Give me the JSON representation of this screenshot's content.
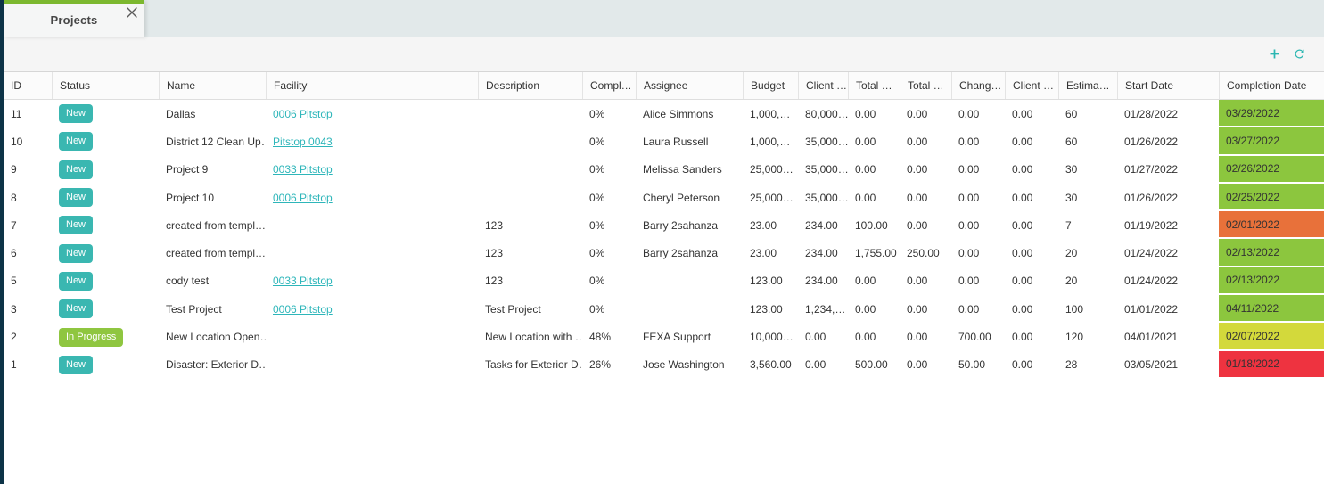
{
  "tabs": {
    "items": [
      {
        "label": "Projects",
        "active": true
      }
    ]
  },
  "toolbar": {
    "add_icon": "plus",
    "refresh_icon": "refresh",
    "accent_color": "#2bb6b1"
  },
  "table": {
    "columns": [
      "ID",
      "Status",
      "Name",
      "Facility",
      "Description",
      "Compl…",
      "Assignee",
      "Budget",
      "Client …",
      "Total …",
      "Total …",
      "Chang…",
      "Client …",
      "Estima…",
      "Start Date",
      "Completion Date"
    ],
    "status_colors": {
      "New": "#3ab7b1",
      "In Progress": "#8fc640"
    },
    "completion_colors": {
      "green": "#8cc63e",
      "orange": "#e8713a",
      "yellow": "#d3d93b",
      "red": "#ee3340"
    },
    "link_color": "#2eb6ba",
    "rows": [
      {
        "id": "11",
        "status": "New",
        "name": "Dallas",
        "facility": "0006 Pitstop",
        "description": "",
        "complete": "0%",
        "assignee": "Alice Simmons",
        "budget": "1,000,…",
        "client_budget": "80,000…",
        "total_1": "0.00",
        "total_2": "0.00",
        "change": "0.00",
        "client_2": "0.00",
        "estimated": "60",
        "start_date": "01/28/2022",
        "completion_date": "03/29/2022",
        "completion_color": "green"
      },
      {
        "id": "10",
        "status": "New",
        "name": "District 12 Clean Up…",
        "facility": "Pitstop 0043",
        "description": "",
        "complete": "0%",
        "assignee": "Laura Russell",
        "budget": "1,000,…",
        "client_budget": "35,000…",
        "total_1": "0.00",
        "total_2": "0.00",
        "change": "0.00",
        "client_2": "0.00",
        "estimated": "60",
        "start_date": "01/26/2022",
        "completion_date": "03/27/2022",
        "completion_color": "green"
      },
      {
        "id": "9",
        "status": "New",
        "name": "Project 9",
        "facility": "0033 Pitstop",
        "description": "",
        "complete": "0%",
        "assignee": "Melissa Sanders",
        "budget": "25,000…",
        "client_budget": "35,000…",
        "total_1": "0.00",
        "total_2": "0.00",
        "change": "0.00",
        "client_2": "0.00",
        "estimated": "30",
        "start_date": "01/27/2022",
        "completion_date": "02/26/2022",
        "completion_color": "green"
      },
      {
        "id": "8",
        "status": "New",
        "name": "Project 10",
        "facility": "0006 Pitstop",
        "description": "",
        "complete": "0%",
        "assignee": "Cheryl Peterson",
        "budget": "25,000…",
        "client_budget": "35,000…",
        "total_1": "0.00",
        "total_2": "0.00",
        "change": "0.00",
        "client_2": "0.00",
        "estimated": "30",
        "start_date": "01/26/2022",
        "completion_date": "02/25/2022",
        "completion_color": "green"
      },
      {
        "id": "7",
        "status": "New",
        "name": "created from templ…",
        "facility": "",
        "description": "123",
        "complete": "0%",
        "assignee": "Barry 2sahanza",
        "budget": "23.00",
        "client_budget": "234.00",
        "total_1": "100.00",
        "total_2": "0.00",
        "change": "0.00",
        "client_2": "0.00",
        "estimated": "7",
        "start_date": "01/19/2022",
        "completion_date": "02/01/2022",
        "completion_color": "orange"
      },
      {
        "id": "6",
        "status": "New",
        "name": "created from templ…",
        "facility": "",
        "description": "123",
        "complete": "0%",
        "assignee": "Barry 2sahanza",
        "budget": "23.00",
        "client_budget": "234.00",
        "total_1": "1,755.00",
        "total_2": "250.00",
        "change": "0.00",
        "client_2": "0.00",
        "estimated": "20",
        "start_date": "01/24/2022",
        "completion_date": "02/13/2022",
        "completion_color": "green"
      },
      {
        "id": "5",
        "status": "New",
        "name": "cody test",
        "facility": "0033 Pitstop",
        "description": "123",
        "complete": "0%",
        "assignee": "",
        "budget": "123.00",
        "client_budget": "234.00",
        "total_1": "0.00",
        "total_2": "0.00",
        "change": "0.00",
        "client_2": "0.00",
        "estimated": "20",
        "start_date": "01/24/2022",
        "completion_date": "02/13/2022",
        "completion_color": "green"
      },
      {
        "id": "3",
        "status": "New",
        "name": "Test Project",
        "facility": "0006 Pitstop",
        "description": "Test Project",
        "complete": "0%",
        "assignee": "",
        "budget": "123.00",
        "client_budget": "1,234,…",
        "total_1": "0.00",
        "total_2": "0.00",
        "change": "0.00",
        "client_2": "0.00",
        "estimated": "100",
        "start_date": "01/01/2022",
        "completion_date": "04/11/2022",
        "completion_color": "green"
      },
      {
        "id": "2",
        "status": "In Progress",
        "name": "New Location Open…",
        "facility": "",
        "description": "New Location with …",
        "complete": "48%",
        "assignee": "FEXA Support",
        "budget": "10,000…",
        "client_budget": "0.00",
        "total_1": "0.00",
        "total_2": "0.00",
        "change": "700.00",
        "client_2": "0.00",
        "estimated": "120",
        "start_date": "04/01/2021",
        "completion_date": "02/07/2022",
        "completion_color": "yellow"
      },
      {
        "id": "1",
        "status": "New",
        "name": "Disaster: Exterior D…",
        "facility": "",
        "description": "Tasks for Exterior D…",
        "complete": "26%",
        "assignee": "Jose Washington",
        "budget": "3,560.00",
        "client_budget": "0.00",
        "total_1": "500.00",
        "total_2": "0.00",
        "change": "50.00",
        "client_2": "0.00",
        "estimated": "28",
        "start_date": "03/05/2021",
        "completion_date": "01/18/2022",
        "completion_color": "red"
      }
    ]
  }
}
